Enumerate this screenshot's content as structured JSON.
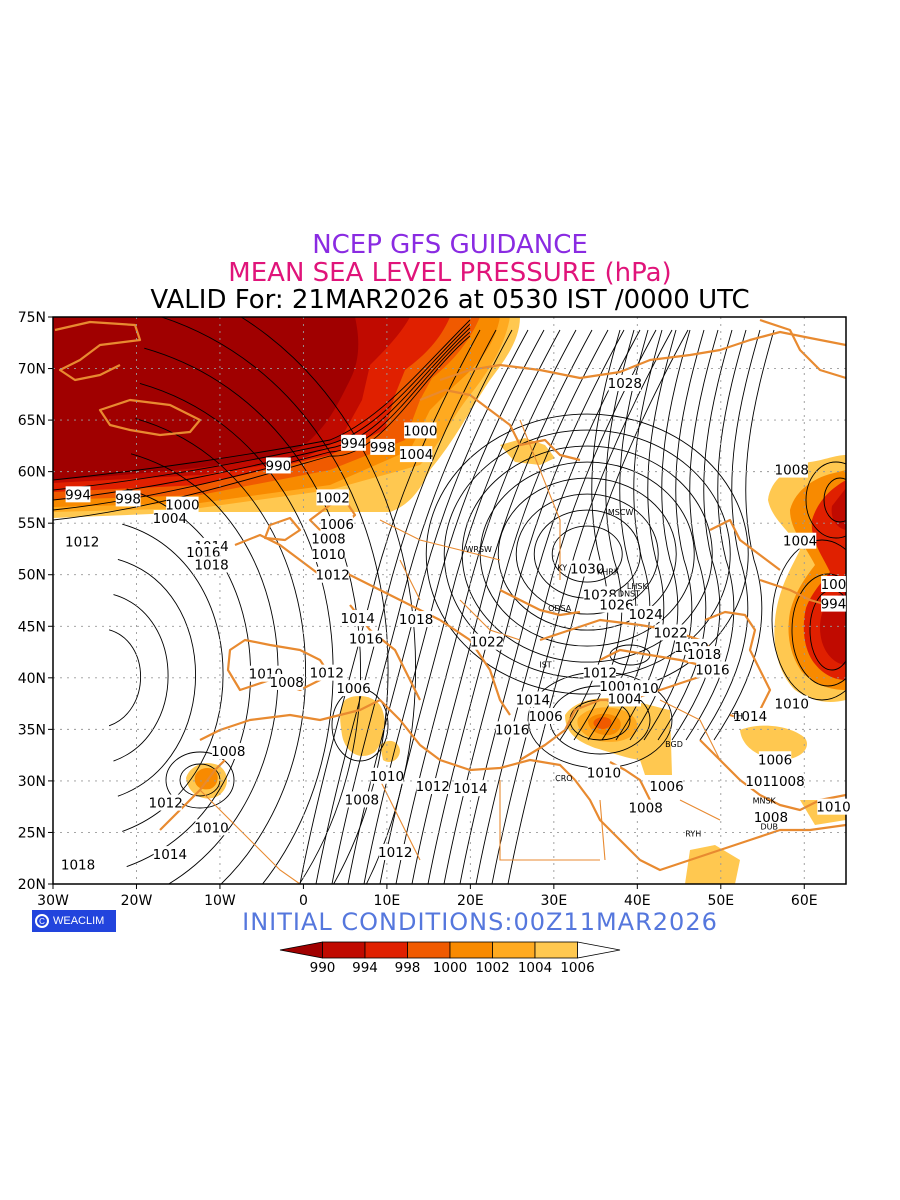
{
  "header": {
    "line1": "NCEP GFS GUIDANCE",
    "line2": "MEAN SEA LEVEL PRESSURE (hPa)",
    "line3": "VALID For: 21MAR2026 at 0530 IST /0000 UTC"
  },
  "footer": {
    "initial_conditions": "INITIAL CONDITIONS:00Z11MAR2026",
    "logo_text": "WEACLIM"
  },
  "axes": {
    "lon_labels": [
      "30W",
      "20W",
      "10W",
      "0",
      "10E",
      "20E",
      "30E",
      "40E",
      "50E",
      "60E"
    ],
    "lat_labels": [
      "75N",
      "70N",
      "65N",
      "60N",
      "55N",
      "50N",
      "45N",
      "40N",
      "35N",
      "30N",
      "25N",
      "20N"
    ]
  },
  "colorbar": {
    "labels": [
      "990",
      "994",
      "998",
      "1000",
      "1002",
      "1004",
      "1006"
    ],
    "colors": [
      "#a00000",
      "#c00a00",
      "#e02000",
      "#f05a00",
      "#f88a00",
      "#ffaa20",
      "#ffc850",
      "#ffffff"
    ]
  },
  "contour_labels": [
    {
      "text": "990",
      "lon": -3,
      "lat": 60.6
    },
    {
      "text": "994",
      "lon": -27,
      "lat": 57.8
    },
    {
      "text": "998",
      "lon": -21,
      "lat": 57.4
    },
    {
      "text": "1000",
      "lon": -14.5,
      "lat": 56.8
    },
    {
      "text": "1004",
      "lon": -16,
      "lat": 55.5
    },
    {
      "text": "994",
      "lon": 6,
      "lat": 62.8
    },
    {
      "text": "998",
      "lon": 9.5,
      "lat": 62.4
    },
    {
      "text": "1000",
      "lon": 14,
      "lat": 64.0
    },
    {
      "text": "1004",
      "lon": 13.5,
      "lat": 61.7
    },
    {
      "text": "1002",
      "lon": 3.5,
      "lat": 57.5
    },
    {
      "text": "1006",
      "lon": 4,
      "lat": 54.9
    },
    {
      "text": "1008",
      "lon": 3,
      "lat": 53.5
    },
    {
      "text": "1010",
      "lon": 3,
      "lat": 52.0
    },
    {
      "text": "1012",
      "lon": 3.5,
      "lat": 50.0
    },
    {
      "text": "1012",
      "lon": -26.5,
      "lat": 53.2
    },
    {
      "text": "1014",
      "lon": -11,
      "lat": 52.8
    },
    {
      "text": "1016",
      "lon": -12,
      "lat": 52.2
    },
    {
      "text": "1018",
      "lon": -11,
      "lat": 51.0
    },
    {
      "text": "1014",
      "lon": 6.5,
      "lat": 45.8
    },
    {
      "text": "1016",
      "lon": 7.5,
      "lat": 43.8
    },
    {
      "text": "1018",
      "lon": 13.5,
      "lat": 45.7
    },
    {
      "text": "1022",
      "lon": 22,
      "lat": 43.5
    },
    {
      "text": "1010",
      "lon": -4.5,
      "lat": 40.4
    },
    {
      "text": "1008",
      "lon": -2,
      "lat": 39.6
    },
    {
      "text": "1012",
      "lon": 2.8,
      "lat": 40.5
    },
    {
      "text": "1006",
      "lon": 6,
      "lat": 39.0
    },
    {
      "text": "1008",
      "lon": -9,
      "lat": 32.9
    },
    {
      "text": "1012",
      "lon": -16.5,
      "lat": 27.9
    },
    {
      "text": "1010",
      "lon": -11,
      "lat": 25.5
    },
    {
      "text": "1014",
      "lon": -16,
      "lat": 22.9
    },
    {
      "text": "1018",
      "lon": -27,
      "lat": 21.9
    },
    {
      "text": "1010",
      "lon": 10,
      "lat": 30.5
    },
    {
      "text": "1012",
      "lon": 15.5,
      "lat": 29.5
    },
    {
      "text": "1014",
      "lon": 20,
      "lat": 29.3
    },
    {
      "text": "1008",
      "lon": 7,
      "lat": 28.2
    },
    {
      "text": "1012",
      "lon": 11,
      "lat": 23.1
    },
    {
      "text": "1028",
      "lon": 38.5,
      "lat": 68.6
    },
    {
      "text": "1030",
      "lon": 34,
      "lat": 50.6
    },
    {
      "text": "1028",
      "lon": 35.5,
      "lat": 48.1
    },
    {
      "text": "1026",
      "lon": 37.5,
      "lat": 47.1
    },
    {
      "text": "1024",
      "lon": 41,
      "lat": 46.2
    },
    {
      "text": "1022",
      "lon": 44,
      "lat": 44.4
    },
    {
      "text": "1020",
      "lon": 46.5,
      "lat": 43.0
    },
    {
      "text": "1018",
      "lon": 48,
      "lat": 42.3
    },
    {
      "text": "1016",
      "lon": 49,
      "lat": 40.8
    },
    {
      "text": "1012",
      "lon": 35.5,
      "lat": 40.5
    },
    {
      "text": "1008",
      "lon": 37.5,
      "lat": 39.2
    },
    {
      "text": "1010",
      "lon": 40.5,
      "lat": 39.0
    },
    {
      "text": "1004",
      "lon": 38.5,
      "lat": 38.0
    },
    {
      "text": "1014",
      "lon": 27.5,
      "lat": 37.9
    },
    {
      "text": "1006",
      "lon": 29,
      "lat": 36.3
    },
    {
      "text": "1016",
      "lon": 25,
      "lat": 35.0
    },
    {
      "text": "1010",
      "lon": 36,
      "lat": 30.8
    },
    {
      "text": "1006",
      "lon": 43.5,
      "lat": 29.5
    },
    {
      "text": "1008",
      "lon": 41,
      "lat": 27.4
    },
    {
      "text": "1008",
      "lon": 58.5,
      "lat": 60.2
    },
    {
      "text": "1004",
      "lon": 59.5,
      "lat": 53.3
    },
    {
      "text": "100",
      "lon": 63.5,
      "lat": 49.1
    },
    {
      "text": "994",
      "lon": 63.5,
      "lat": 47.2
    },
    {
      "text": "1010",
      "lon": 58.5,
      "lat": 37.5
    },
    {
      "text": "1014",
      "lon": 53.5,
      "lat": 36.3
    },
    {
      "text": "1006",
      "lon": 56.5,
      "lat": 32.1
    },
    {
      "text": "1010",
      "lon": 55,
      "lat": 30.0
    },
    {
      "text": "1008",
      "lon": 58,
      "lat": 30.0
    },
    {
      "text": "1008",
      "lon": 56,
      "lat": 26.5
    },
    {
      "text": "1010",
      "lon": 63.5,
      "lat": 27.5
    }
  ],
  "city_labels": [
    {
      "text": "MSCW",
      "lon": 38,
      "lat": 55.8
    },
    {
      "text": "WRSW",
      "lon": 21,
      "lat": 52.2
    },
    {
      "text": "KY",
      "lon": 31,
      "lat": 50.4
    },
    {
      "text": "KHRK",
      "lon": 36.5,
      "lat": 50.0
    },
    {
      "text": "LHSK",
      "lon": 40,
      "lat": 48.6
    },
    {
      "text": "DNST",
      "lon": 39,
      "lat": 47.9
    },
    {
      "text": "ODSA",
      "lon": 30.7,
      "lat": 46.5
    },
    {
      "text": "IST",
      "lon": 29,
      "lat": 41.0
    },
    {
      "text": "TH",
      "lon": 52,
      "lat": 36.0
    },
    {
      "text": "BGD",
      "lon": 44.4,
      "lat": 33.3
    },
    {
      "text": "CRO",
      "lon": 31.2,
      "lat": 30.0
    },
    {
      "text": "MNSK",
      "lon": 55.2,
      "lat": 27.8
    },
    {
      "text": "DUB",
      "lon": 55.8,
      "lat": 25.3
    },
    {
      "text": "RYH",
      "lon": 46.7,
      "lat": 24.6
    }
  ]
}
